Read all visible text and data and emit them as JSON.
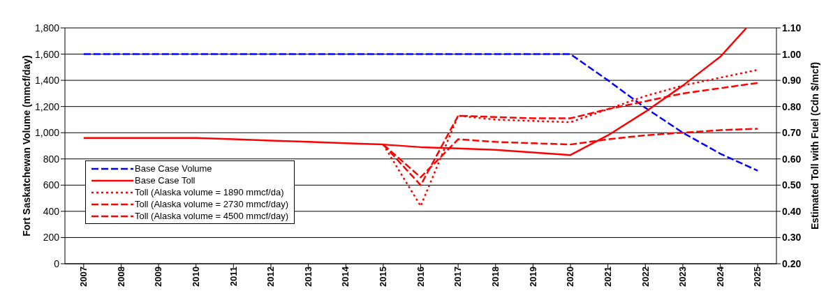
{
  "chart_data": {
    "type": "line",
    "ylabel": "Fort Saskatchewan Volume (mmcf/day)",
    "y2label": "Estimated Toll with Fuel (Cdn $/mcf)",
    "x": [
      2007,
      2008,
      2009,
      2010,
      2011,
      2012,
      2013,
      2014,
      2015,
      2016,
      2017,
      2018,
      2019,
      2020,
      2021,
      2022,
      2023,
      2024,
      2025
    ],
    "xlim": [
      2006.5,
      2025.5
    ],
    "xticks": [
      2007,
      2008,
      2009,
      2010,
      2011,
      2012,
      2013,
      2014,
      2015,
      2016,
      2017,
      2018,
      2019,
      2020,
      2021,
      2022,
      2023,
      2024,
      2025
    ],
    "ylim": [
      0,
      1800
    ],
    "yticks": [
      0,
      200,
      400,
      600,
      800,
      {
        "value": 1000,
        "label": "1,000"
      },
      {
        "value": 1200,
        "label": "1,200"
      },
      {
        "value": 1400,
        "label": "1,400"
      },
      {
        "value": 1600,
        "label": "1,600"
      },
      {
        "value": 1800,
        "label": "1,800"
      }
    ],
    "y2lim": [
      0.2,
      1.1
    ],
    "y2ticks": [
      {
        "value": 0.2,
        "label": "0.20"
      },
      {
        "value": 0.3,
        "label": "0.30"
      },
      {
        "value": 0.4,
        "label": "0.40"
      },
      {
        "value": 0.5,
        "label": "0.50"
      },
      {
        "value": 0.6,
        "label": "0.60"
      },
      {
        "value": 0.7,
        "label": "0.70"
      },
      {
        "value": 0.8,
        "label": "0.80"
      },
      {
        "value": 0.9,
        "label": "0.90"
      },
      {
        "value": 1.0,
        "label": "1.00"
      },
      {
        "value": 1.1,
        "label": "1.10"
      }
    ],
    "grid": "y",
    "legend": "bottom left",
    "marker": "none",
    "series": [
      {
        "name": "Base Case Volume",
        "color": "#0000ff",
        "line_style": "dashed",
        "values": [
          1600,
          1600,
          1600,
          1600,
          1600,
          1600,
          1600,
          1600,
          1600,
          1600,
          1600,
          1600,
          1600,
          1600,
          1400,
          1190,
          1000,
          840,
          710
        ]
      },
      {
        "name": "Base Case Toll",
        "color": "#ff0000",
        "line_style": "solid",
        "axis": "y2",
        "x": [
          2007,
          2008,
          2009,
          2010,
          2011,
          2012,
          2013,
          2014,
          2015,
          2016,
          2017,
          2018,
          2019,
          2020,
          2021,
          2022,
          2023,
          2024,
          2024.7
        ],
        "values": [
          0.68,
          0.68,
          0.68,
          0.68,
          0.675,
          0.67,
          0.665,
          0.66,
          0.655,
          0.645,
          0.64,
          0.635,
          0.625,
          0.615,
          0.69,
          0.78,
          0.88,
          0.99,
          1.1
        ]
      },
      {
        "name": "Toll (Alaska volume = 1890 mmcf/da)",
        "color": "#ff0000",
        "line_style": "dotted",
        "axis": "y2",
        "x": [
          2015,
          2016,
          2017,
          2018,
          2019,
          2020,
          2021,
          2022,
          2023,
          2024,
          2025
        ],
        "values": [
          0.655,
          0.42,
          0.765,
          0.75,
          0.745,
          0.74,
          0.79,
          0.84,
          0.88,
          0.91,
          0.94
        ]
      },
      {
        "name": "Toll (Alaska volume = 2730 mmcf/day)",
        "color": "#ff0000",
        "line_style": "dashed",
        "axis": "y2",
        "x": [
          2015,
          2016,
          2017,
          2018,
          2019,
          2020,
          2021,
          2022,
          2023,
          2024,
          2025
        ],
        "values": [
          0.655,
          0.5,
          0.765,
          0.76,
          0.755,
          0.755,
          0.79,
          0.82,
          0.85,
          0.87,
          0.89
        ]
      },
      {
        "name": "Toll (Alaska volume = 4500 mmcf/day)",
        "color": "#ff0000",
        "line_style": "dashed",
        "axis": "y2",
        "x": [
          2015,
          2016,
          2017,
          2018,
          2019,
          2020,
          2021,
          2022,
          2023,
          2024,
          2025
        ],
        "values": [
          0.655,
          0.53,
          0.675,
          0.665,
          0.66,
          0.655,
          0.675,
          0.69,
          0.7,
          0.71,
          0.715
        ]
      }
    ]
  }
}
